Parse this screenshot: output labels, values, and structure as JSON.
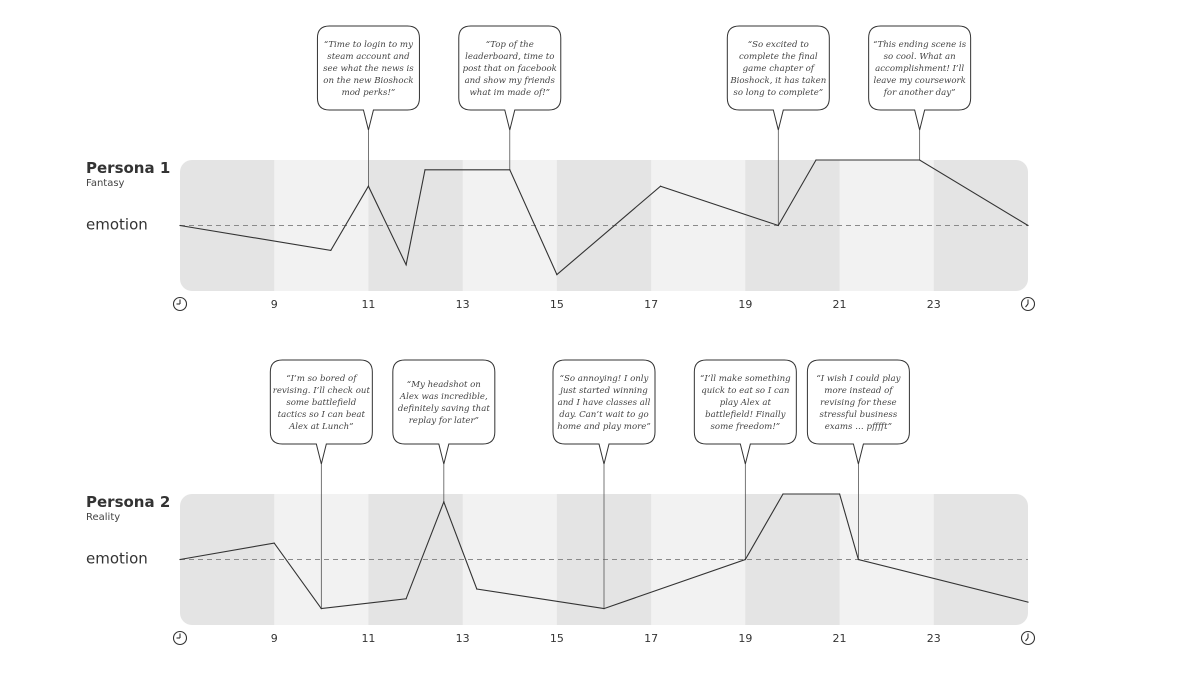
{
  "chart_data": [
    {
      "type": "line",
      "persona": "Persona 1",
      "subtitle": "Fantasy",
      "ylabel": "emotion",
      "xlim": [
        8,
        26
      ],
      "ylim": [
        -1,
        1
      ],
      "x_ticks": [
        "9",
        "11",
        "13",
        "15",
        "17",
        "19",
        "21",
        "23"
      ],
      "start_icon": "clock-icon",
      "end_icon": "clock-icon",
      "points": [
        {
          "x": 8.0,
          "y": 0.0
        },
        {
          "x": 11.2,
          "y": -0.38
        },
        {
          "x": 12.0,
          "y": 0.6
        },
        {
          "x": 12.8,
          "y": -0.6
        },
        {
          "x": 13.2,
          "y": 0.85
        },
        {
          "x": 15.0,
          "y": 0.85
        },
        {
          "x": 16.0,
          "y": -0.75
        },
        {
          "x": 18.2,
          "y": 0.6
        },
        {
          "x": 20.7,
          "y": 0.0
        },
        {
          "x": 21.5,
          "y": 1.0
        },
        {
          "x": 23.7,
          "y": 1.0
        },
        {
          "x": 26.0,
          "y": 0.0
        }
      ],
      "annotations": [
        {
          "x": 12.0,
          "lines": [
            "“Time to login to my",
            "steam account and",
            "see what the news is",
            "on the new Bioshock",
            "mod perks!”"
          ]
        },
        {
          "x": 15.0,
          "lines": [
            "“Top of the",
            "leaderboard, time to",
            "post that on facebook",
            "and show my friends",
            "what im made of!”"
          ]
        },
        {
          "x": 20.7,
          "lines": [
            "“So excited to",
            "complete the final",
            "game chapter of",
            "Bioshock, it has taken",
            "so long to complete”"
          ]
        },
        {
          "x": 23.7,
          "lines": [
            "“This ending scene is",
            "so cool. What an",
            "accomplishment! I’ll",
            "leave my coursework",
            "for another day”"
          ]
        }
      ]
    },
    {
      "type": "line",
      "persona": "Persona 2",
      "subtitle": "Reality",
      "ylabel": "emotion",
      "xlim": [
        8,
        26
      ],
      "ylim": [
        -1,
        1
      ],
      "x_ticks": [
        "9",
        "11",
        "13",
        "15",
        "17",
        "19",
        "21",
        "23"
      ],
      "start_icon": "clock-icon",
      "end_icon": "clock-icon",
      "points": [
        {
          "x": 8.0,
          "y": 0.0
        },
        {
          "x": 10.0,
          "y": 0.25
        },
        {
          "x": 11.0,
          "y": -0.75
        },
        {
          "x": 12.8,
          "y": -0.6
        },
        {
          "x": 13.6,
          "y": 0.88
        },
        {
          "x": 14.3,
          "y": -0.45
        },
        {
          "x": 17.0,
          "y": -0.75
        },
        {
          "x": 20.0,
          "y": 0.0
        },
        {
          "x": 20.8,
          "y": 1.0
        },
        {
          "x": 22.0,
          "y": 1.0
        },
        {
          "x": 22.4,
          "y": 0.0
        },
        {
          "x": 26.0,
          "y": -0.65
        }
      ],
      "annotations": [
        {
          "x": 11.0,
          "lines": [
            "“I’m so bored of",
            "revising. I’ll check out",
            "some battlefield",
            "tactics so I can beat",
            "Alex at Lunch”"
          ]
        },
        {
          "x": 13.6,
          "lines": [
            "“My headshot on",
            "Alex was incredible,",
            "definitely saving that",
            "replay for later”"
          ]
        },
        {
          "x": 17.0,
          "lines": [
            "“So annoying! I only",
            "just started winning",
            "and I have classes all",
            "day. Can’t wait to go",
            "home and play more”"
          ]
        },
        {
          "x": 20.0,
          "lines": [
            "“I’ll make something",
            "quick to eat so I can",
            "play Alex at",
            "battlefield! Finally",
            "some freedom!”"
          ]
        },
        {
          "x": 22.4,
          "lines": [
            "“I wish I could play",
            "more instead of",
            "revising for these",
            "stressful business",
            "exams … pfffft”"
          ]
        }
      ]
    }
  ]
}
